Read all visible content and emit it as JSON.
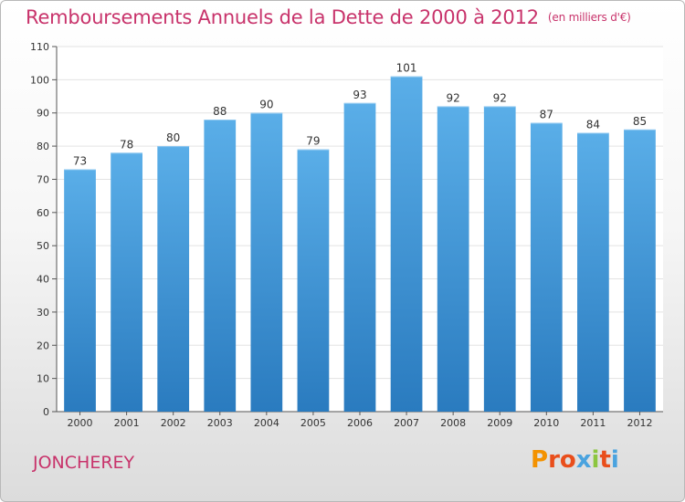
{
  "title": "Remboursements Annuels de la Dette de 2000 à 2012",
  "subtitle": "(en milliers d'€)",
  "commune": "JONCHEREY",
  "logo": {
    "text": "Proxiti",
    "letters": [
      "P",
      "r",
      "o",
      "x",
      "i",
      "t",
      "i"
    ],
    "colors": [
      "#f39200",
      "#e94e1b",
      "#e94e1b",
      "#4aa3df",
      "#8cc63f",
      "#e94e1b",
      "#4aa3df"
    ]
  },
  "colors": {
    "title": "#c8336b",
    "bar_top": "#5aaee8",
    "bar_bottom": "#2a7bbf",
    "grid": "#e3e3e3",
    "axis": "#555555"
  },
  "chart_data": {
    "type": "bar",
    "categories": [
      "2000",
      "2001",
      "2002",
      "2003",
      "2004",
      "2005",
      "2006",
      "2007",
      "2008",
      "2009",
      "2010",
      "2011",
      "2012"
    ],
    "values": [
      73,
      78,
      80,
      88,
      90,
      79,
      93,
      101,
      92,
      92,
      87,
      84,
      85
    ],
    "title": "Remboursements Annuels de la Dette de 2000 à 2012",
    "xlabel": "",
    "ylabel": "",
    "ylim": [
      0,
      110
    ],
    "yticks": [
      0,
      10,
      20,
      30,
      40,
      50,
      60,
      70,
      80,
      90,
      100,
      110
    ],
    "grid": true,
    "data_labels": true
  }
}
